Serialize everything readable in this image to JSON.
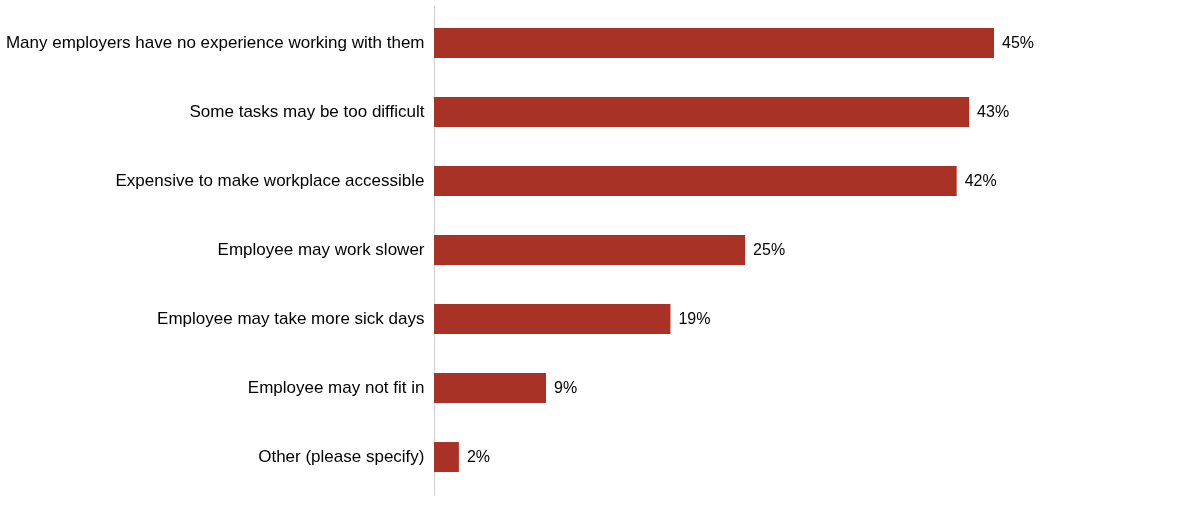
{
  "chart_data": {
    "type": "bar",
    "orientation": "horizontal",
    "categories": [
      "Many employers have no experience working with them",
      "Some tasks may be too difficult",
      "Expensive to make workplace accessible",
      "Employee may work slower",
      "Employee may take more sick days",
      "Employee may not fit in",
      "Other (please specify)"
    ],
    "values": [
      45,
      43,
      42,
      25,
      19,
      9,
      2
    ],
    "value_labels": [
      "45%",
      "43%",
      "42%",
      "25%",
      "19%",
      "9%",
      "2%"
    ],
    "color": "#a93226"
  }
}
